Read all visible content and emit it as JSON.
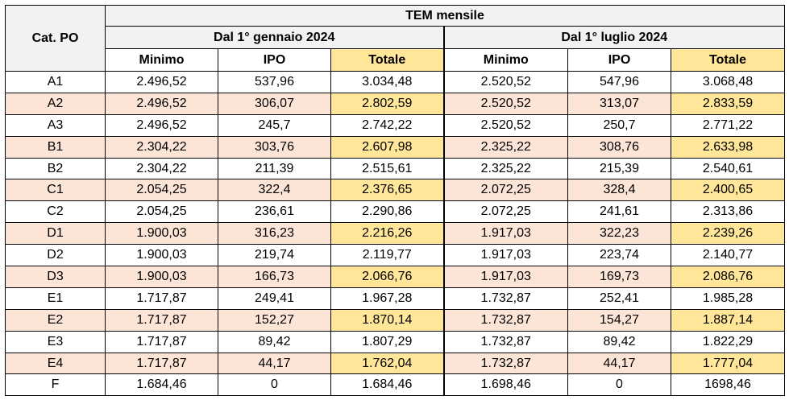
{
  "header": {
    "cat_label": "Cat. PO",
    "group_title": "TEM mensile",
    "period1": "Dal 1° gennaio 2024",
    "period2": "Dal 1° luglio 2024",
    "cols": [
      "Minimo",
      "IPO",
      "Totale",
      "Minimo",
      "IPO",
      "Totale"
    ]
  },
  "rows": [
    {
      "cat": "A1",
      "v": [
        "2.496,52",
        "537,96",
        "3.034,48",
        "2.520,52",
        "547,96",
        "3.068,48"
      ]
    },
    {
      "cat": "A2",
      "v": [
        "2.496,52",
        "306,07",
        "2.802,59",
        "2.520,52",
        "313,07",
        "2.833,59"
      ]
    },
    {
      "cat": "A3",
      "v": [
        "2.496,52",
        "245,7",
        "2.742,22",
        "2.520,52",
        "250,7",
        "2.771,22"
      ]
    },
    {
      "cat": "B1",
      "v": [
        "2.304,22",
        "303,76",
        "2.607,98",
        "2.325,22",
        "308,76",
        "2.633,98"
      ]
    },
    {
      "cat": "B2",
      "v": [
        "2.304,22",
        "211,39",
        "2.515,61",
        "2.325,22",
        "215,39",
        "2.540,61"
      ]
    },
    {
      "cat": "C1",
      "v": [
        "2.054,25",
        "322,4",
        "2.376,65",
        "2.072,25",
        "328,4",
        "2.400,65"
      ]
    },
    {
      "cat": "C2",
      "v": [
        "2.054,25",
        "236,61",
        "2.290,86",
        "2.072,25",
        "241,61",
        "2.313,86"
      ]
    },
    {
      "cat": "D1",
      "v": [
        "1.900,03",
        "316,23",
        "2.216,26",
        "1.917,03",
        "322,23",
        "2.239,26"
      ]
    },
    {
      "cat": "D2",
      "v": [
        "1.900,03",
        "219,74",
        "2.119,77",
        "1.917,03",
        "223,74",
        "2.140,77"
      ]
    },
    {
      "cat": "D3",
      "v": [
        "1.900,03",
        "166,73",
        "2.066,76",
        "1.917,03",
        "169,73",
        "2.086,76"
      ]
    },
    {
      "cat": "E1",
      "v": [
        "1.717,87",
        "249,41",
        "1.967,28",
        "1.732,87",
        "252,41",
        "1.985,28"
      ]
    },
    {
      "cat": "E2",
      "v": [
        "1.717,87",
        "152,27",
        "1.870,14",
        "1.732,87",
        "154,27",
        "1.887,14"
      ]
    },
    {
      "cat": "E3",
      "v": [
        "1.717,87",
        "89,42",
        "1.807,29",
        "1.732,87",
        "89,42",
        "1.822,29"
      ]
    },
    {
      "cat": "E4",
      "v": [
        "1.717,87",
        "44,17",
        "1.762,04",
        "1.732,87",
        "44,17",
        "1.777,04"
      ]
    },
    {
      "cat": "F",
      "v": [
        "1.684,46",
        "0",
        "1.684,46",
        "1.698,46",
        "0",
        "1698,46"
      ]
    }
  ]
}
